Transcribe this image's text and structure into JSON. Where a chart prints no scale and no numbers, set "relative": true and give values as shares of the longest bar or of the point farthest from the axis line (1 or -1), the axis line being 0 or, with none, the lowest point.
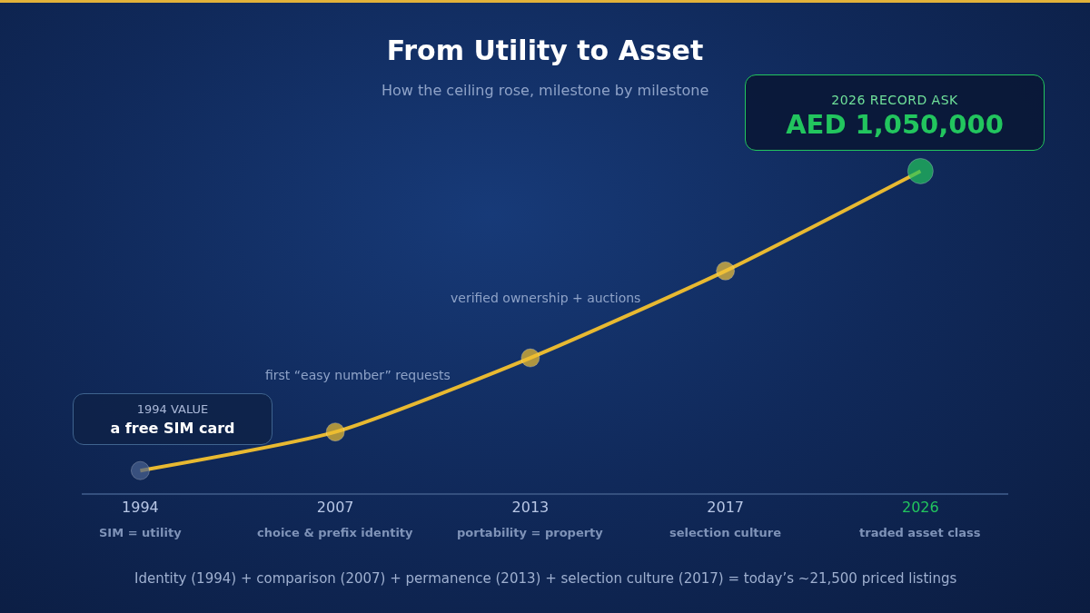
{
  "chart_data": {
    "type": "line",
    "title": "From Utility to Asset",
    "subtitle": "How the ceiling rose, milestone by milestone",
    "relative": true,
    "categories": [
      "1994",
      "2007",
      "2013",
      "2017",
      "2026"
    ],
    "series": [
      {
        "color": "#e8b931",
        "values": [
          0.07,
          0.19,
          0.42,
          0.69,
          1
        ],
        "colors": [
          "#4a6290",
          "#f0c030",
          "#f0c030",
          "#f2c33a",
          "#22c55e"
        ]
      }
    ],
    "marker": "circle",
    "line_style": "solid",
    "grid": false,
    "annotations": [
      "first “easy number” requests",
      "verified ownership + auctions",
      "1994 VALUE",
      "a free SIM card",
      "2026 RECORD ASK",
      "AED 1,050,000",
      "SIM = utility",
      "choice & prefix identity",
      "portability = property",
      "selection culture",
      "traded asset class",
      "Identity (1994) + comparison (2007) + permanence (2013) + selection culture (2017) = today’s ~21,500 priced listings"
    ]
  }
}
